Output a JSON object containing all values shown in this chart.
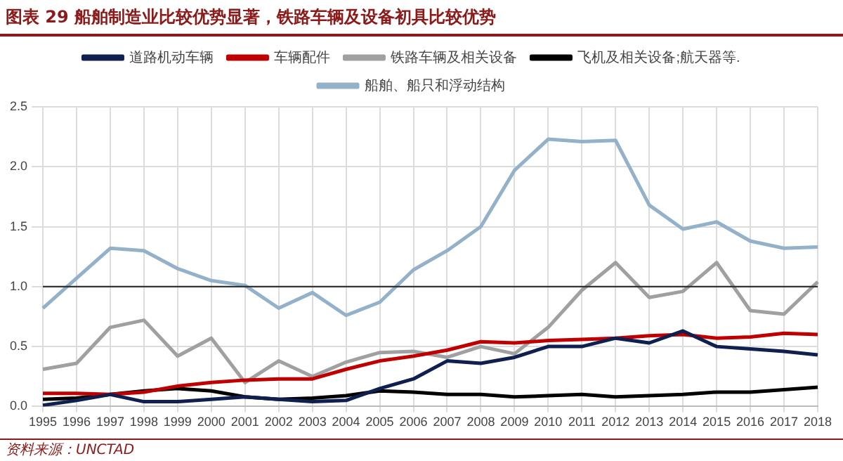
{
  "chart_data": {
    "type": "line",
    "title": "图表 29   船舶制造业比较优势显著，铁路车辆及设备初具比较优势",
    "categories": [
      "1995",
      "1996",
      "1997",
      "1998",
      "1999",
      "2000",
      "2001",
      "2002",
      "2003",
      "2004",
      "2005",
      "2006",
      "2007",
      "2008",
      "2009",
      "2010",
      "2011",
      "2012",
      "2013",
      "2014",
      "2015",
      "2016",
      "2017",
      "2018"
    ],
    "series": [
      {
        "name": "道路机动车辆",
        "color": "#0f1f4f",
        "values": [
          0.01,
          0.05,
          0.1,
          0.04,
          0.04,
          0.06,
          0.08,
          0.06,
          0.04,
          0.05,
          0.15,
          0.23,
          0.38,
          0.36,
          0.41,
          0.5,
          0.5,
          0.57,
          0.53,
          0.63,
          0.5,
          0.48,
          0.46,
          0.43
        ]
      },
      {
        "name": "车辆配件",
        "color": "#c00000",
        "values": [
          0.11,
          0.11,
          0.1,
          0.12,
          0.17,
          0.2,
          0.22,
          0.23,
          0.23,
          0.31,
          0.38,
          0.42,
          0.47,
          0.54,
          0.53,
          0.55,
          0.56,
          0.57,
          0.59,
          0.6,
          0.57,
          0.58,
          0.61,
          0.6
        ]
      },
      {
        "name": "铁路车辆及相关设备",
        "color": "#a0a0a0",
        "values": [
          0.31,
          0.36,
          0.66,
          0.72,
          0.42,
          0.57,
          0.2,
          0.38,
          0.25,
          0.37,
          0.45,
          0.46,
          0.41,
          0.5,
          0.44,
          0.66,
          0.97,
          1.2,
          0.91,
          0.96,
          1.2,
          0.8,
          0.77,
          1.04
        ]
      },
      {
        "name": "飞机及相关设备;航天器等.",
        "color": "#000000",
        "values": [
          0.06,
          0.07,
          0.1,
          0.13,
          0.15,
          0.13,
          0.08,
          0.06,
          0.07,
          0.09,
          0.13,
          0.12,
          0.1,
          0.1,
          0.08,
          0.09,
          0.1,
          0.08,
          0.09,
          0.1,
          0.12,
          0.12,
          0.14,
          0.16
        ]
      },
      {
        "name": "船舶、船只和浮动结构",
        "color": "#93b1c9",
        "values": [
          0.82,
          1.07,
          1.32,
          1.3,
          1.15,
          1.05,
          1.01,
          0.82,
          0.95,
          0.76,
          0.87,
          1.14,
          1.3,
          1.5,
          1.97,
          2.23,
          2.21,
          2.22,
          1.68,
          1.48,
          1.54,
          1.38,
          1.32,
          1.33
        ]
      }
    ],
    "ylim": [
      0,
      2.5
    ],
    "yticks": [
      {
        "value": 0,
        "label": "0.0"
      },
      {
        "value": 0.5,
        "label": "0.5"
      },
      {
        "value": 1,
        "label": "1.0"
      },
      {
        "value": 1.5,
        "label": "1.5"
      },
      {
        "value": 2,
        "label": "2.0"
      },
      {
        "value": 2.5,
        "label": "2.5"
      }
    ],
    "ref_lines": [
      {
        "axis": "y",
        "value": 1
      }
    ],
    "grid": true,
    "legend": "top",
    "marker": "none",
    "line_style": "solid",
    "annotations": [
      "资料来源：UNCTAD"
    ]
  }
}
